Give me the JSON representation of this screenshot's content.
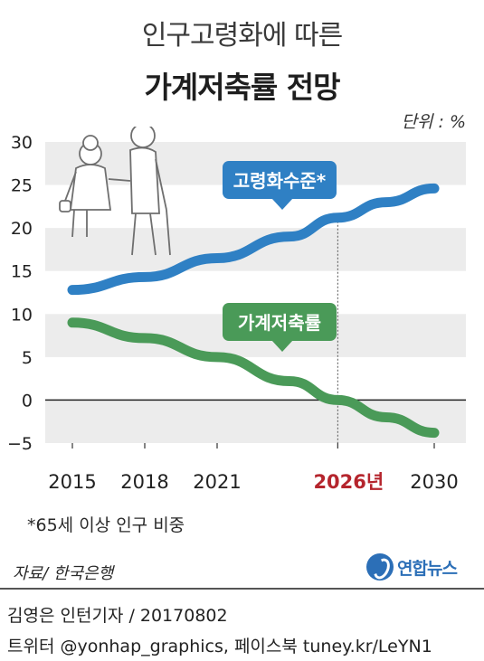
{
  "header": {
    "title_line1": "인구고령화에 따른",
    "title_line2": "가계저축률 전망",
    "unit": "단위 : %"
  },
  "chart_data": {
    "type": "line",
    "x": [
      2015,
      2018,
      2021,
      2026,
      2030
    ],
    "x_tick_labels": [
      "2015",
      "2018",
      "2021",
      "2026년",
      "2030"
    ],
    "highlight_x_label": "2026년",
    "y_ticks": [
      30,
      25,
      20,
      15,
      10,
      5,
      0,
      -5
    ],
    "ylim": [
      -5,
      30
    ],
    "grid": "alternating bands",
    "series": [
      {
        "name": "고령화수준*",
        "x": [
          2015,
          2018,
          2021,
          2024,
          2026,
          2028,
          2030
        ],
        "values": [
          12.8,
          14.3,
          16.5,
          19.0,
          21.2,
          23.0,
          24.6
        ]
      },
      {
        "name": "가계저축률",
        "x": [
          2015,
          2018,
          2021,
          2024,
          2026,
          2028,
          2030
        ],
        "values": [
          9.0,
          7.2,
          5.0,
          2.2,
          0.0,
          -2.0,
          -3.8
        ]
      }
    ]
  },
  "colors": {
    "aging": "#2f80c4",
    "savings": "#4a9a58",
    "highlight": "#b5252d",
    "band": "#ececec"
  },
  "footer": {
    "note": "*65세 이상 인구 비중",
    "source": "자료/ 한국은행",
    "logo_text": "연합뉴스",
    "credit_line1": "김영은 인턴기자 / 20170802",
    "credit_line2": "트위터 @yonhap_graphics, 페이스북 tuney.kr/LeYN1"
  }
}
